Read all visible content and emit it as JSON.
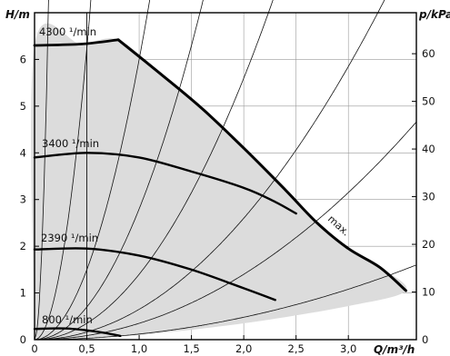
{
  "chart_data": {
    "type": "line",
    "left_axis": {
      "label": "H/m",
      "range": [
        0,
        7
      ],
      "ticks": [
        0,
        1,
        2,
        3,
        4,
        5,
        6
      ]
    },
    "right_axis": {
      "label": "p/kPa",
      "range": [
        0,
        68.6
      ],
      "ticks": [
        0,
        10,
        20,
        30,
        40,
        50,
        60
      ]
    },
    "x_axis": {
      "label": "Q/m³/h",
      "range": [
        0,
        3.65
      ],
      "ticks": [
        0,
        0.5,
        1.0,
        1.5,
        2.0,
        2.5,
        3.0
      ],
      "tick_labels": [
        "0",
        "0,5",
        "1,0",
        "1,5",
        "2,0",
        "2,5",
        "3,0"
      ]
    },
    "grid": true,
    "operating_range": {
      "fill": "#dcdcdc",
      "description_points": [
        [
          0,
          0
        ],
        [
          0,
          6.3
        ],
        [
          0.45,
          6.33
        ],
        [
          0.8,
          6.42
        ],
        [
          1.2,
          5.7
        ],
        [
          1.6,
          4.95
        ],
        [
          2.0,
          4.1
        ],
        [
          2.4,
          3.2
        ],
        [
          2.7,
          2.5
        ],
        [
          3.0,
          1.95
        ],
        [
          3.3,
          1.55
        ],
        [
          3.55,
          1.05
        ],
        [
          3.0,
          0.72
        ],
        [
          2.0,
          0.35
        ],
        [
          1.0,
          0.1
        ],
        [
          0.3,
          0.01
        ],
        [
          0,
          0
        ]
      ]
    },
    "series": [
      {
        "name": "4300 ¹/min",
        "points": [
          [
            0,
            6.3
          ],
          [
            0.45,
            6.33
          ],
          [
            0.8,
            6.42
          ]
        ],
        "color": "#000000"
      },
      {
        "name": "3400 ¹/min",
        "points": [
          [
            0,
            3.9
          ],
          [
            0.5,
            4.0
          ],
          [
            1.0,
            3.9
          ],
          [
            1.5,
            3.6
          ],
          [
            2.0,
            3.25
          ],
          [
            2.3,
            2.95
          ],
          [
            2.5,
            2.7
          ]
        ],
        "color": "#000000"
      },
      {
        "name": "2390 ¹/min",
        "points": [
          [
            0,
            1.93
          ],
          [
            0.5,
            1.95
          ],
          [
            1.0,
            1.8
          ],
          [
            1.5,
            1.5
          ],
          [
            2.0,
            1.1
          ],
          [
            2.3,
            0.85
          ]
        ],
        "color": "#000000"
      },
      {
        "name": "800 ¹/min",
        "points": [
          [
            0,
            0.23
          ],
          [
            0.3,
            0.24
          ],
          [
            0.6,
            0.17
          ],
          [
            0.82,
            0.08
          ]
        ],
        "color": "#000000"
      },
      {
        "name": "max.",
        "points": [
          [
            0.8,
            6.42
          ],
          [
            1.2,
            5.7
          ],
          [
            1.6,
            4.95
          ],
          [
            2.0,
            4.1
          ],
          [
            2.4,
            3.2
          ],
          [
            2.7,
            2.5
          ],
          [
            3.0,
            1.95
          ],
          [
            3.3,
            1.55
          ],
          [
            3.55,
            1.05
          ]
        ],
        "color": "#000000"
      }
    ],
    "system_curves": [
      {
        "k": 400
      },
      {
        "k": 25
      },
      {
        "k": 6
      },
      {
        "k": 2.8
      },
      {
        "k": 1.4
      },
      {
        "k": 0.65
      },
      {
        "k": 0.35
      },
      {
        "k": 0.12
      }
    ],
    "vertical_guide": {
      "x": 0.5
    }
  }
}
